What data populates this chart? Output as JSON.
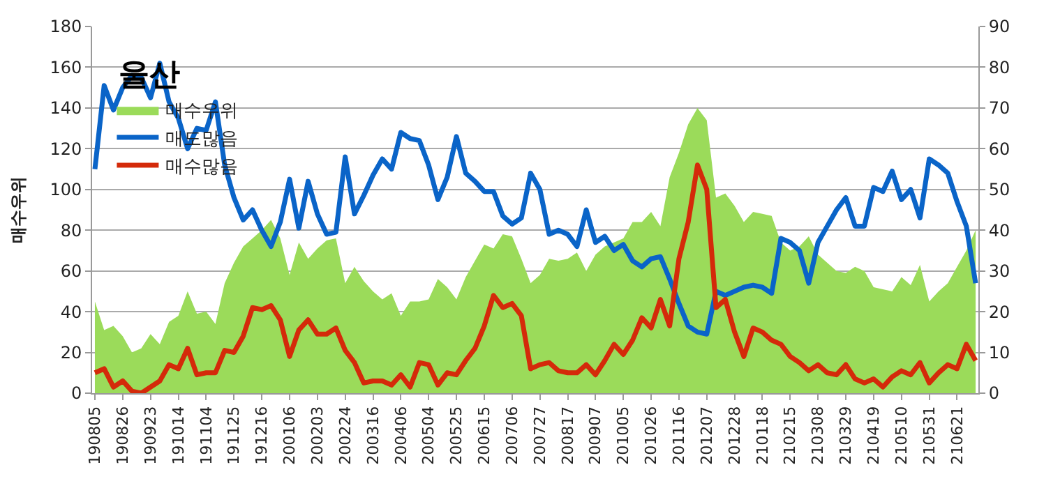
{
  "chart_data": {
    "type": "line",
    "title": "울산",
    "ylabel": "매수우위",
    "categories": [
      "190805",
      null,
      null,
      "190826",
      null,
      null,
      "190923",
      null,
      null,
      "191014",
      null,
      null,
      "191104",
      null,
      null,
      "191125",
      null,
      null,
      "191216",
      null,
      null,
      "200106",
      null,
      null,
      "200203",
      null,
      null,
      "200224",
      null,
      null,
      "200316",
      null,
      null,
      "200406",
      null,
      null,
      "200504",
      null,
      null,
      "200525",
      null,
      null,
      "200615",
      null,
      null,
      "200706",
      null,
      null,
      "200727",
      null,
      null,
      "200817",
      null,
      null,
      "200907",
      null,
      null,
      "201005",
      null,
      null,
      "201026",
      null,
      null,
      "201116",
      null,
      null,
      "201207",
      null,
      null,
      "201228",
      null,
      null,
      "210118",
      null,
      null,
      "210215",
      null,
      null,
      "210308",
      null,
      null,
      "210329",
      null,
      null,
      "210419",
      null,
      null,
      "210510",
      null,
      null,
      "210531",
      null,
      null,
      "210621",
      null,
      null
    ],
    "series": [
      {
        "name": "매수우위",
        "type": "area",
        "color": "#9bdb5a",
        "values": [
          45,
          31,
          33,
          28,
          20,
          22,
          29,
          24,
          35,
          38,
          50,
          39,
          40,
          34,
          54,
          64,
          72,
          76,
          80,
          85,
          76,
          58,
          74,
          66,
          71,
          75,
          76,
          54,
          62,
          55,
          50,
          46,
          49,
          38,
          45,
          45,
          46,
          56,
          52,
          46,
          57,
          65,
          73,
          71,
          78,
          77,
          66,
          54,
          58,
          66,
          65,
          66,
          69,
          60,
          68,
          72,
          74,
          76,
          84,
          84,
          89,
          82,
          106,
          118,
          132,
          140,
          134,
          96,
          98,
          92,
          84,
          89,
          88,
          87,
          74,
          70,
          72,
          77,
          68,
          64,
          60,
          59,
          62,
          60,
          52,
          51,
          50,
          57,
          53,
          63,
          45,
          50,
          54,
          62,
          70,
          80
        ]
      },
      {
        "name": "매도많음",
        "axis": "y2",
        "color": "#0a64c8",
        "values": [
          55,
          75.5,
          69.5,
          75,
          78,
          77.5,
          72.5,
          81,
          71.5,
          67.5,
          60,
          65,
          64.5,
          71.5,
          56,
          48,
          42.5,
          45,
          40,
          36,
          42,
          52.5,
          40.5,
          52,
          44,
          39,
          39.5,
          58,
          44,
          48.5,
          53.5,
          57.5,
          55,
          64,
          62.5,
          62,
          56,
          47.5,
          53,
          63,
          54,
          52,
          49.5,
          49.5,
          43.5,
          41.5,
          43,
          54,
          50,
          39,
          40,
          39,
          36,
          45,
          37,
          38.5,
          35,
          36.5,
          32.5,
          31,
          33,
          33.5,
          28,
          22,
          16.5,
          15,
          14.5,
          25,
          24,
          25,
          26,
          26.5,
          26,
          24.5,
          38,
          37,
          35,
          27,
          37,
          41,
          45,
          48,
          41,
          41,
          50.5,
          49.5,
          54.5,
          47.5,
          50,
          43,
          57.5,
          56,
          54,
          47,
          41,
          27
        ]
      },
      {
        "name": "매수많음",
        "axis": "y2",
        "color": "#d42a0a",
        "values": [
          5,
          6,
          1.5,
          3,
          0.5,
          0,
          1.5,
          3,
          7,
          6,
          11,
          4.5,
          5,
          5,
          10.5,
          10,
          14,
          21,
          20.5,
          21.5,
          18,
          9,
          15.5,
          18,
          14.5,
          14.5,
          16,
          10.5,
          7.5,
          2.5,
          3,
          3,
          2,
          4.5,
          1.5,
          7.5,
          7,
          2,
          5,
          4.5,
          8,
          11,
          16.5,
          24,
          21,
          22,
          19,
          6,
          7,
          7.5,
          5.5,
          5,
          5,
          7,
          4.5,
          8,
          12,
          9.5,
          13,
          18.5,
          16,
          23,
          16.5,
          33,
          42,
          56,
          50,
          21,
          23,
          15,
          9,
          16,
          15,
          13,
          12,
          9,
          7.5,
          5.5,
          7,
          5,
          4.5,
          7,
          3.5,
          2.5,
          3.5,
          1.5,
          4,
          5.5,
          4.5,
          7.5,
          2.5,
          5,
          7,
          6,
          12,
          8
        ]
      }
    ],
    "ylim": [
      0,
      180
    ],
    "yticks": [
      0,
      20,
      40,
      60,
      80,
      100,
      120,
      140,
      160,
      180
    ],
    "y2lim": [
      0,
      90
    ],
    "y2ticks": [
      0,
      10,
      20,
      30,
      40,
      50,
      60,
      70,
      80,
      90
    ],
    "grid": "y",
    "legend": "top left"
  }
}
